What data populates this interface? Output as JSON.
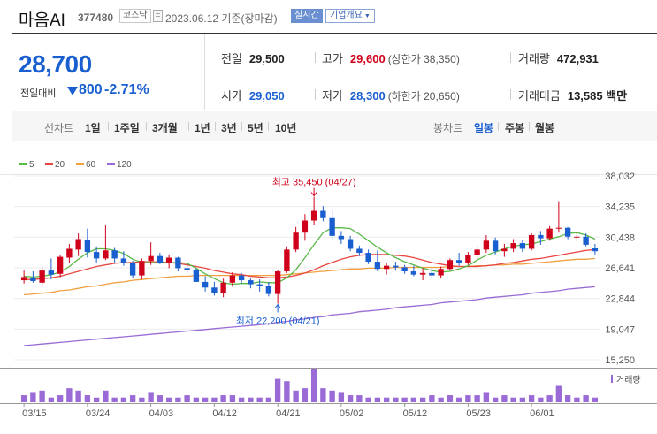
{
  "header": {
    "stock_name": "마음AI",
    "stock_code": "377480",
    "market_badge": "코스닥",
    "as_of": "2023.06.12 기준(장마감)",
    "realtime_button": "실시간",
    "company_info_button": "기업개요",
    "company_info_caret": "▼"
  },
  "quote": {
    "price": "28,700",
    "change_label": "전일대비",
    "change": "800",
    "change_pct": "-2.71%",
    "direction": "down",
    "prev_close_label": "전일",
    "prev_close": "29,500",
    "open_label": "시가",
    "open": "29,050",
    "high_label": "고가",
    "high": "29,600",
    "upper_limit": "(상한가 38,350)",
    "low_label": "저가",
    "low": "28,300",
    "lower_limit": "(하한가 20,650)",
    "volume_label": "거래량",
    "volume": "472,931",
    "value_label": "거래대금",
    "value": "13,585 백만"
  },
  "periods": {
    "line_label": "선차트",
    "items": [
      "1일",
      "1주일",
      "3개월",
      "1년",
      "3년",
      "5년",
      "10년"
    ],
    "candle_label": "봉차트",
    "candle_items": [
      "일봉",
      "주봉",
      "월봉"
    ],
    "active_candle": "일봉"
  },
  "colors": {
    "up": "#d0021b",
    "down": "#1a5fd0",
    "ma5": "#58b947",
    "ma20": "#e8473f",
    "ma60": "#f0a040",
    "ma120": "#9a6bd6",
    "volume": "#9a6bd6"
  },
  "chart_data": {
    "type": "candlestick",
    "legend": [
      "5",
      "20",
      "60",
      "120"
    ],
    "y_ticks": [
      "38,032",
      "34,235",
      "30,438",
      "26,641",
      "22,844",
      "19,047",
      "15,250"
    ],
    "ylim": [
      15250,
      38032
    ],
    "x_labels": [
      "03/15",
      "03/24",
      "04/03",
      "04/12",
      "04/21",
      "05/02",
      "05/12",
      "05/23",
      "06/01"
    ],
    "x_label_index": [
      0,
      7,
      14,
      21,
      28,
      35,
      42,
      49,
      56
    ],
    "volume_label": "거래량",
    "high_annotation": "최고 35,450 (04/27)",
    "high_index": 32,
    "high_value": 35450,
    "low_annotation": "최저 22,200 (04/21)",
    "low_index": 28,
    "low_value": 22200,
    "candles": [
      {
        "o": 25100,
        "h": 26300,
        "l": 24700,
        "c": 25500
      },
      {
        "o": 25400,
        "h": 26200,
        "l": 24800,
        "c": 25000
      },
      {
        "o": 24800,
        "h": 26800,
        "l": 24300,
        "c": 26300
      },
      {
        "o": 26300,
        "h": 27800,
        "l": 25200,
        "c": 25800
      },
      {
        "o": 25900,
        "h": 28300,
        "l": 25500,
        "c": 28000
      },
      {
        "o": 27900,
        "h": 29600,
        "l": 27200,
        "c": 29000
      },
      {
        "o": 28900,
        "h": 30900,
        "l": 28100,
        "c": 30200
      },
      {
        "o": 30100,
        "h": 31500,
        "l": 27900,
        "c": 28600
      },
      {
        "o": 28600,
        "h": 29300,
        "l": 27300,
        "c": 27800
      },
      {
        "o": 27800,
        "h": 31900,
        "l": 27600,
        "c": 28800
      },
      {
        "o": 28800,
        "h": 29100,
        "l": 27300,
        "c": 27800
      },
      {
        "o": 27800,
        "h": 28700,
        "l": 26900,
        "c": 27300
      },
      {
        "o": 27300,
        "h": 27500,
        "l": 25400,
        "c": 25700
      },
      {
        "o": 25700,
        "h": 27800,
        "l": 25200,
        "c": 27500
      },
      {
        "o": 27500,
        "h": 29800,
        "l": 27000,
        "c": 28100
      },
      {
        "o": 28100,
        "h": 28500,
        "l": 27100,
        "c": 27300
      },
      {
        "o": 27300,
        "h": 28300,
        "l": 26600,
        "c": 27900
      },
      {
        "o": 27900,
        "h": 28000,
        "l": 26200,
        "c": 26600
      },
      {
        "o": 26600,
        "h": 27200,
        "l": 25900,
        "c": 26400
      },
      {
        "o": 26400,
        "h": 26600,
        "l": 24900,
        "c": 24900
      },
      {
        "o": 24900,
        "h": 25600,
        "l": 23700,
        "c": 24200
      },
      {
        "o": 24200,
        "h": 24900,
        "l": 23200,
        "c": 23500
      },
      {
        "o": 23500,
        "h": 25300,
        "l": 23000,
        "c": 24800
      },
      {
        "o": 24800,
        "h": 26100,
        "l": 24300,
        "c": 25700
      },
      {
        "o": 25700,
        "h": 26000,
        "l": 24700,
        "c": 25100
      },
      {
        "o": 25100,
        "h": 25400,
        "l": 24100,
        "c": 24600
      },
      {
        "o": 24600,
        "h": 25200,
        "l": 23700,
        "c": 24400
      },
      {
        "o": 24400,
        "h": 24900,
        "l": 23100,
        "c": 23400
      },
      {
        "o": 23400,
        "h": 26400,
        "l": 22200,
        "c": 26200
      },
      {
        "o": 26200,
        "h": 29300,
        "l": 26000,
        "c": 28900
      },
      {
        "o": 28900,
        "h": 31700,
        "l": 28600,
        "c": 31000
      },
      {
        "o": 31000,
        "h": 33300,
        "l": 30000,
        "c": 32500
      },
      {
        "o": 32500,
        "h": 35450,
        "l": 31900,
        "c": 33700
      },
      {
        "o": 33700,
        "h": 34300,
        "l": 32400,
        "c": 32800
      },
      {
        "o": 32800,
        "h": 33700,
        "l": 30200,
        "c": 30600
      },
      {
        "o": 30600,
        "h": 31200,
        "l": 29600,
        "c": 30200
      },
      {
        "o": 30200,
        "h": 30600,
        "l": 28700,
        "c": 29000
      },
      {
        "o": 29000,
        "h": 29400,
        "l": 28100,
        "c": 28500
      },
      {
        "o": 28500,
        "h": 28900,
        "l": 27100,
        "c": 27400
      },
      {
        "o": 27400,
        "h": 28800,
        "l": 26200,
        "c": 26500
      },
      {
        "o": 26500,
        "h": 27300,
        "l": 25800,
        "c": 26900
      },
      {
        "o": 26900,
        "h": 27400,
        "l": 26300,
        "c": 26700
      },
      {
        "o": 26700,
        "h": 27000,
        "l": 25900,
        "c": 26200
      },
      {
        "o": 26200,
        "h": 26900,
        "l": 25600,
        "c": 25800
      },
      {
        "o": 25800,
        "h": 26600,
        "l": 25100,
        "c": 26000
      },
      {
        "o": 26000,
        "h": 26700,
        "l": 25400,
        "c": 25700
      },
      {
        "o": 25700,
        "h": 26800,
        "l": 25300,
        "c": 26500
      },
      {
        "o": 26500,
        "h": 27800,
        "l": 26300,
        "c": 27600
      },
      {
        "o": 27600,
        "h": 28500,
        "l": 26900,
        "c": 27300
      },
      {
        "o": 27300,
        "h": 28600,
        "l": 27000,
        "c": 28200
      },
      {
        "o": 28200,
        "h": 29300,
        "l": 27700,
        "c": 28900
      },
      {
        "o": 28900,
        "h": 30700,
        "l": 28500,
        "c": 30000
      },
      {
        "o": 30000,
        "h": 30400,
        "l": 28300,
        "c": 28700
      },
      {
        "o": 28700,
        "h": 29600,
        "l": 28000,
        "c": 29000
      },
      {
        "o": 29000,
        "h": 30200,
        "l": 28600,
        "c": 29700
      },
      {
        "o": 29700,
        "h": 30100,
        "l": 28600,
        "c": 29000
      },
      {
        "o": 29000,
        "h": 30900,
        "l": 28800,
        "c": 30700
      },
      {
        "o": 30700,
        "h": 31200,
        "l": 29500,
        "c": 30300
      },
      {
        "o": 30300,
        "h": 31800,
        "l": 30000,
        "c": 31500
      },
      {
        "o": 31500,
        "h": 34900,
        "l": 31000,
        "c": 31600
      },
      {
        "o": 31600,
        "h": 31700,
        "l": 30200,
        "c": 30500
      },
      {
        "o": 30500,
        "h": 31000,
        "l": 29900,
        "c": 30500
      },
      {
        "o": 30500,
        "h": 30900,
        "l": 29300,
        "c": 29500
      },
      {
        "o": 29050,
        "h": 29600,
        "l": 28300,
        "c": 28700
      }
    ],
    "volume": [
      3,
      4,
      5,
      2,
      3,
      6,
      5,
      3,
      2,
      5,
      2,
      2,
      3,
      2,
      4,
      3,
      2,
      2,
      3,
      2,
      2,
      2,
      3,
      3,
      2,
      2,
      2,
      2,
      10,
      9,
      5,
      6,
      14,
      6,
      5,
      4,
      3,
      3,
      2,
      2,
      2,
      2,
      2,
      2,
      2,
      3,
      2,
      3,
      2,
      3,
      3,
      4,
      2,
      3,
      2,
      2,
      3,
      2,
      3,
      7,
      3,
      2,
      3,
      2
    ],
    "ma5": [
      25600,
      25500,
      25600,
      25800,
      26100,
      26800,
      27700,
      28500,
      29000,
      29000,
      28800,
      28400,
      27700,
      27300,
      27300,
      27300,
      27300,
      27300,
      27200,
      26600,
      25900,
      25300,
      24800,
      24600,
      24700,
      24700,
      24900,
      24800,
      24800,
      25400,
      26400,
      27900,
      29500,
      31000,
      31600,
      31600,
      31500,
      30800,
      30000,
      29200,
      28500,
      27900,
      27400,
      27000,
      26600,
      26300,
      26100,
      26200,
      26500,
      26900,
      27600,
      28200,
      28600,
      29000,
      29300,
      29500,
      29600,
      29900,
      30200,
      30500,
      30900,
      31000,
      30700,
      30200
    ],
    "ma20": [
      25200,
      25200,
      25300,
      25400,
      25600,
      25900,
      26200,
      26500,
      26800,
      27000,
      27200,
      27300,
      27300,
      27400,
      27400,
      27400,
      27300,
      27200,
      27000,
      26800,
      26600,
      26300,
      26100,
      25900,
      25800,
      25600,
      25500,
      25400,
      25400,
      25500,
      25700,
      26000,
      26400,
      26900,
      27300,
      27700,
      28000,
      28200,
      28300,
      28300,
      28300,
      28200,
      28100,
      27900,
      27600,
      27300,
      27100,
      26900,
      26800,
      26800,
      26800,
      26900,
      27000,
      27200,
      27300,
      27500,
      27700,
      27800,
      28000,
      28200,
      28400,
      28600,
      28800,
      28900
    ],
    "ma60": [
      23300,
      23400,
      23500,
      23600,
      23800,
      23900,
      24100,
      24300,
      24400,
      24600,
      24800,
      24900,
      25100,
      25200,
      25300,
      25400,
      25500,
      25600,
      25600,
      25700,
      25700,
      25700,
      25700,
      25700,
      25700,
      25700,
      25700,
      25700,
      25700,
      25800,
      25900,
      26000,
      26100,
      26200,
      26300,
      26400,
      26500,
      26500,
      26600,
      26600,
      26600,
      26700,
      26700,
      26700,
      26700,
      26700,
      26700,
      26800,
      26800,
      26800,
      26900,
      26900,
      27000,
      27000,
      27100,
      27100,
      27200,
      27300,
      27400,
      27500,
      27600,
      27700,
      27700,
      27800
    ],
    "ma120": [
      17000,
      17100,
      17200,
      17300,
      17400,
      17500,
      17600,
      17700,
      17800,
      17900,
      18000,
      18100,
      18200,
      18300,
      18400,
      18500,
      18600,
      18700,
      18800,
      18900,
      19000,
      19100,
      19200,
      19300,
      19400,
      19500,
      19600,
      19700,
      19900,
      20000,
      20200,
      20300,
      20500,
      20600,
      20800,
      20900,
      21000,
      21200,
      21300,
      21400,
      21500,
      21700,
      21800,
      21900,
      22000,
      22100,
      22300,
      22400,
      22500,
      22600,
      22700,
      22900,
      23000,
      23100,
      23200,
      23300,
      23500,
      23600,
      23700,
      23800,
      24000,
      24100,
      24200,
      24300
    ]
  }
}
